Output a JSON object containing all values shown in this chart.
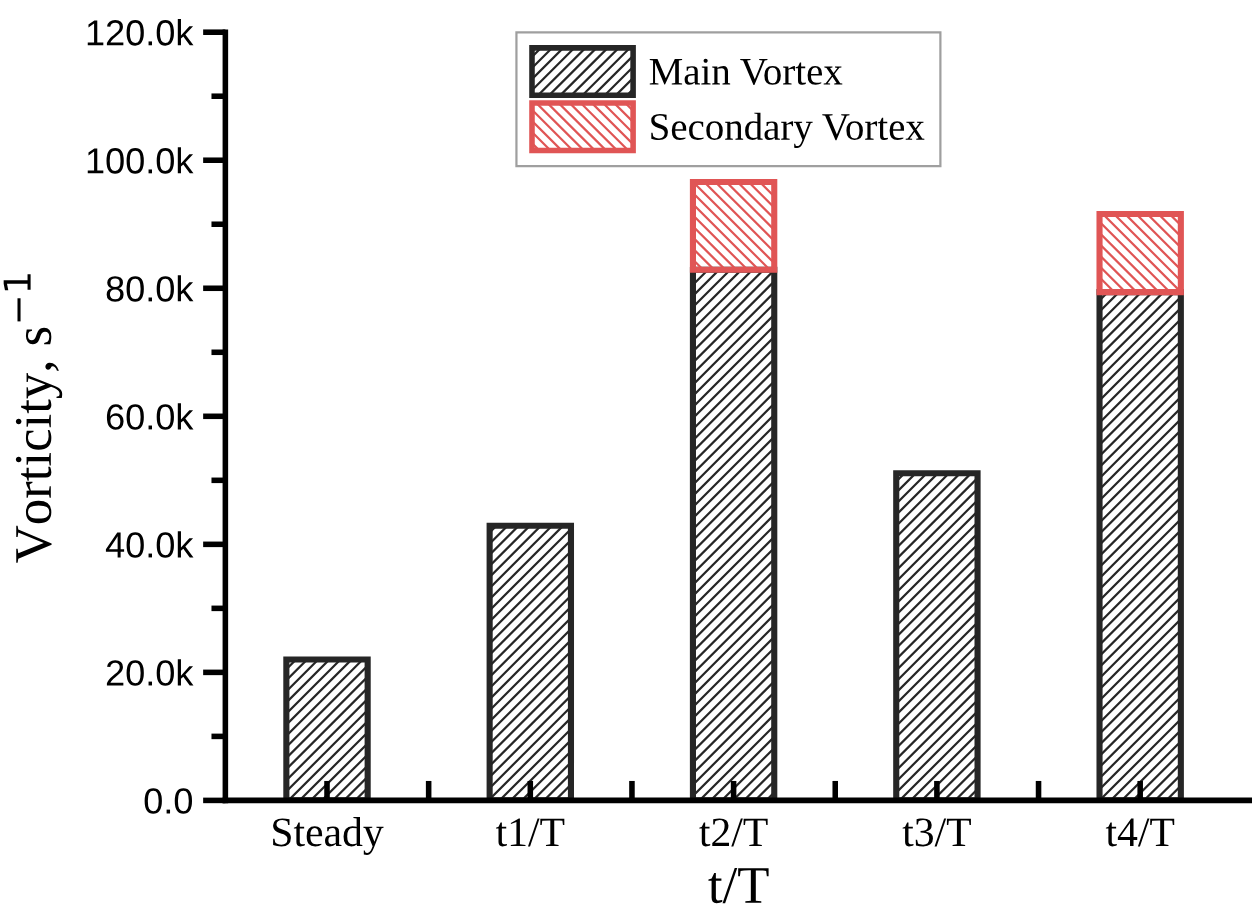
{
  "chart_data": {
    "type": "bar",
    "stacked": true,
    "xlabel": "t/T",
    "ylabel": "Vorticity, s$^{−1}$",
    "categories": [
      "Steady",
      "t1/T",
      "t2/T",
      "t3/T",
      "t4/T"
    ],
    "series": [
      {
        "name": "Main Vortex",
        "color": "#262626",
        "values": [
          22.0,
          42.9,
          82.9,
          51.1,
          79.4
        ]
      },
      {
        "name": "Secondary Vortex",
        "color": "#e05555",
        "values": [
          null,
          null,
          13.7,
          null,
          12.2
        ]
      }
    ],
    "ylim": [
      0,
      120
    ],
    "yticks": [
      {
        "value": 0,
        "label": "0.0"
      },
      {
        "value": 20,
        "label": "20.0k"
      },
      {
        "value": 40,
        "label": "40.0k"
      },
      {
        "value": 60,
        "label": "60.0k"
      },
      {
        "value": 80,
        "label": "80.0k"
      },
      {
        "value": 100,
        "label": "100.0k"
      },
      {
        "value": 120,
        "label": "120.0k"
      }
    ],
    "grid": false,
    "legend": "top"
  }
}
